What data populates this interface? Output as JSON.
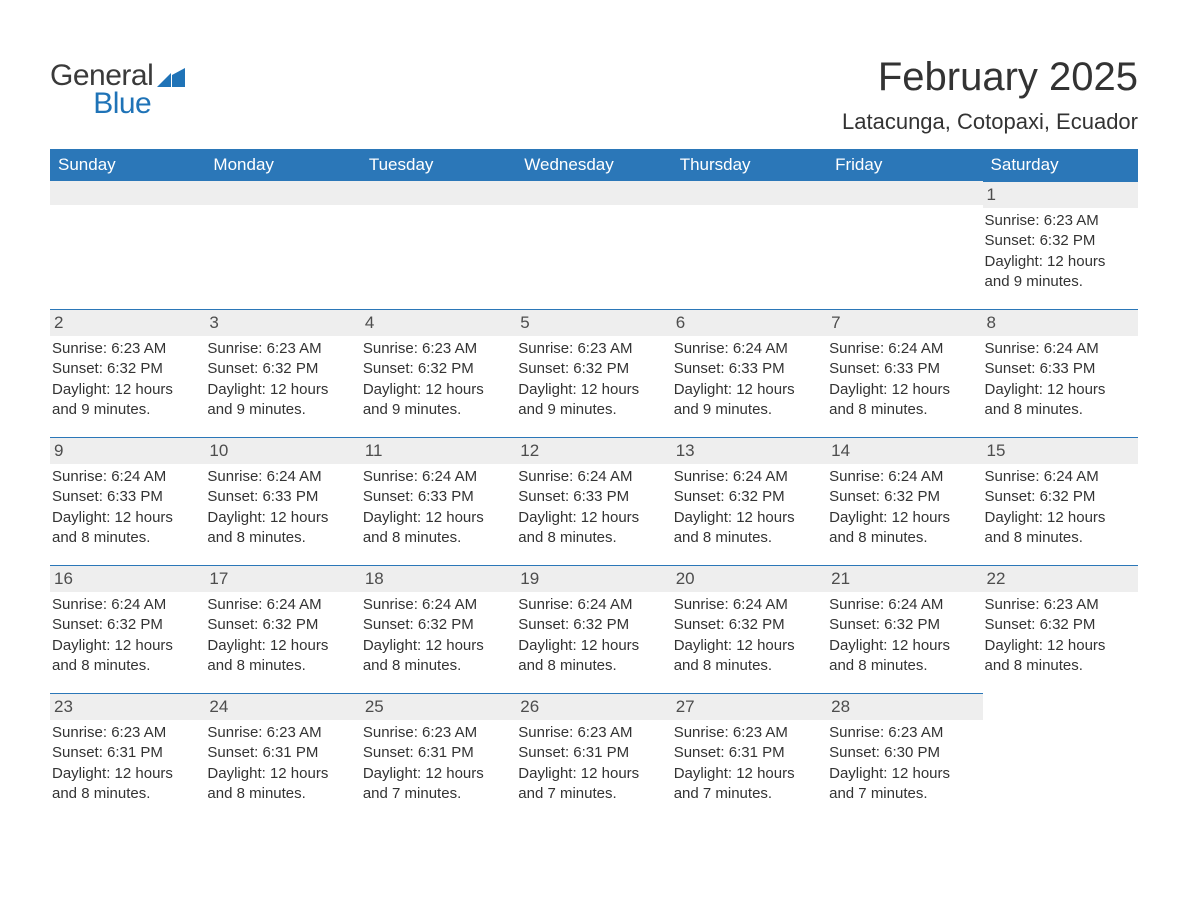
{
  "brand": {
    "text1": "General",
    "text2": "Blue",
    "color1": "#3a3a3a",
    "color2": "#1f73b7"
  },
  "title": "February 2025",
  "location": "Latacunga, Cotopaxi, Ecuador",
  "colors": {
    "header_bg": "#2b77b8",
    "header_fg": "#ffffff",
    "daynum_bg": "#eeeeee",
    "daynum_border": "#2b77b8",
    "text": "#333333"
  },
  "weekdays": [
    "Sunday",
    "Monday",
    "Tuesday",
    "Wednesday",
    "Thursday",
    "Friday",
    "Saturday"
  ],
  "weeks": [
    [
      null,
      null,
      null,
      null,
      null,
      null,
      {
        "n": "1",
        "sunrise": "Sunrise: 6:23 AM",
        "sunset": "Sunset: 6:32 PM",
        "daylight1": "Daylight: 12 hours",
        "daylight2": "and 9 minutes."
      }
    ],
    [
      {
        "n": "2",
        "sunrise": "Sunrise: 6:23 AM",
        "sunset": "Sunset: 6:32 PM",
        "daylight1": "Daylight: 12 hours",
        "daylight2": "and 9 minutes."
      },
      {
        "n": "3",
        "sunrise": "Sunrise: 6:23 AM",
        "sunset": "Sunset: 6:32 PM",
        "daylight1": "Daylight: 12 hours",
        "daylight2": "and 9 minutes."
      },
      {
        "n": "4",
        "sunrise": "Sunrise: 6:23 AM",
        "sunset": "Sunset: 6:32 PM",
        "daylight1": "Daylight: 12 hours",
        "daylight2": "and 9 minutes."
      },
      {
        "n": "5",
        "sunrise": "Sunrise: 6:23 AM",
        "sunset": "Sunset: 6:32 PM",
        "daylight1": "Daylight: 12 hours",
        "daylight2": "and 9 minutes."
      },
      {
        "n": "6",
        "sunrise": "Sunrise: 6:24 AM",
        "sunset": "Sunset: 6:33 PM",
        "daylight1": "Daylight: 12 hours",
        "daylight2": "and 9 minutes."
      },
      {
        "n": "7",
        "sunrise": "Sunrise: 6:24 AM",
        "sunset": "Sunset: 6:33 PM",
        "daylight1": "Daylight: 12 hours",
        "daylight2": "and 8 minutes."
      },
      {
        "n": "8",
        "sunrise": "Sunrise: 6:24 AM",
        "sunset": "Sunset: 6:33 PM",
        "daylight1": "Daylight: 12 hours",
        "daylight2": "and 8 minutes."
      }
    ],
    [
      {
        "n": "9",
        "sunrise": "Sunrise: 6:24 AM",
        "sunset": "Sunset: 6:33 PM",
        "daylight1": "Daylight: 12 hours",
        "daylight2": "and 8 minutes."
      },
      {
        "n": "10",
        "sunrise": "Sunrise: 6:24 AM",
        "sunset": "Sunset: 6:33 PM",
        "daylight1": "Daylight: 12 hours",
        "daylight2": "and 8 minutes."
      },
      {
        "n": "11",
        "sunrise": "Sunrise: 6:24 AM",
        "sunset": "Sunset: 6:33 PM",
        "daylight1": "Daylight: 12 hours",
        "daylight2": "and 8 minutes."
      },
      {
        "n": "12",
        "sunrise": "Sunrise: 6:24 AM",
        "sunset": "Sunset: 6:33 PM",
        "daylight1": "Daylight: 12 hours",
        "daylight2": "and 8 minutes."
      },
      {
        "n": "13",
        "sunrise": "Sunrise: 6:24 AM",
        "sunset": "Sunset: 6:32 PM",
        "daylight1": "Daylight: 12 hours",
        "daylight2": "and 8 minutes."
      },
      {
        "n": "14",
        "sunrise": "Sunrise: 6:24 AM",
        "sunset": "Sunset: 6:32 PM",
        "daylight1": "Daylight: 12 hours",
        "daylight2": "and 8 minutes."
      },
      {
        "n": "15",
        "sunrise": "Sunrise: 6:24 AM",
        "sunset": "Sunset: 6:32 PM",
        "daylight1": "Daylight: 12 hours",
        "daylight2": "and 8 minutes."
      }
    ],
    [
      {
        "n": "16",
        "sunrise": "Sunrise: 6:24 AM",
        "sunset": "Sunset: 6:32 PM",
        "daylight1": "Daylight: 12 hours",
        "daylight2": "and 8 minutes."
      },
      {
        "n": "17",
        "sunrise": "Sunrise: 6:24 AM",
        "sunset": "Sunset: 6:32 PM",
        "daylight1": "Daylight: 12 hours",
        "daylight2": "and 8 minutes."
      },
      {
        "n": "18",
        "sunrise": "Sunrise: 6:24 AM",
        "sunset": "Sunset: 6:32 PM",
        "daylight1": "Daylight: 12 hours",
        "daylight2": "and 8 minutes."
      },
      {
        "n": "19",
        "sunrise": "Sunrise: 6:24 AM",
        "sunset": "Sunset: 6:32 PM",
        "daylight1": "Daylight: 12 hours",
        "daylight2": "and 8 minutes."
      },
      {
        "n": "20",
        "sunrise": "Sunrise: 6:24 AM",
        "sunset": "Sunset: 6:32 PM",
        "daylight1": "Daylight: 12 hours",
        "daylight2": "and 8 minutes."
      },
      {
        "n": "21",
        "sunrise": "Sunrise: 6:24 AM",
        "sunset": "Sunset: 6:32 PM",
        "daylight1": "Daylight: 12 hours",
        "daylight2": "and 8 minutes."
      },
      {
        "n": "22",
        "sunrise": "Sunrise: 6:23 AM",
        "sunset": "Sunset: 6:32 PM",
        "daylight1": "Daylight: 12 hours",
        "daylight2": "and 8 minutes."
      }
    ],
    [
      {
        "n": "23",
        "sunrise": "Sunrise: 6:23 AM",
        "sunset": "Sunset: 6:31 PM",
        "daylight1": "Daylight: 12 hours",
        "daylight2": "and 8 minutes."
      },
      {
        "n": "24",
        "sunrise": "Sunrise: 6:23 AM",
        "sunset": "Sunset: 6:31 PM",
        "daylight1": "Daylight: 12 hours",
        "daylight2": "and 8 minutes."
      },
      {
        "n": "25",
        "sunrise": "Sunrise: 6:23 AM",
        "sunset": "Sunset: 6:31 PM",
        "daylight1": "Daylight: 12 hours",
        "daylight2": "and 7 minutes."
      },
      {
        "n": "26",
        "sunrise": "Sunrise: 6:23 AM",
        "sunset": "Sunset: 6:31 PM",
        "daylight1": "Daylight: 12 hours",
        "daylight2": "and 7 minutes."
      },
      {
        "n": "27",
        "sunrise": "Sunrise: 6:23 AM",
        "sunset": "Sunset: 6:31 PM",
        "daylight1": "Daylight: 12 hours",
        "daylight2": "and 7 minutes."
      },
      {
        "n": "28",
        "sunrise": "Sunrise: 6:23 AM",
        "sunset": "Sunset: 6:30 PM",
        "daylight1": "Daylight: 12 hours",
        "daylight2": "and 7 minutes."
      },
      null
    ]
  ]
}
